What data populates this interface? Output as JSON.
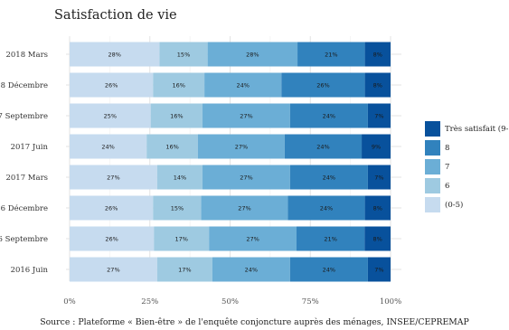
{
  "title": "Satisfaction de vie",
  "caption": "Source : Plateforme « Bien-être » de l'enquête conjoncture auprès des ménages, INSEE/CEPREMAP",
  "chart_data": {
    "type": "bar",
    "orientation": "horizontal",
    "stacked": true,
    "title": "Satisfaction de vie",
    "xlabel": "",
    "ylabel": "",
    "xlim": [
      0,
      100
    ],
    "x_ticks": [
      "0%",
      "25%",
      "50%",
      "75%",
      "100%"
    ],
    "grid": true,
    "legend_position": "right",
    "categories": [
      "2018 Mars",
      "2018 Décembre",
      "2017 Septembre",
      "2017 Juin",
      "2017 Mars",
      "2016 Décembre",
      "2016 Septembre",
      "2016 Juin"
    ],
    "series": [
      {
        "name": "(0-5)",
        "color": "#c6dbef",
        "values": [
          28,
          26,
          25,
          24,
          27,
          26,
          26,
          27
        ]
      },
      {
        "name": "6",
        "color": "#9ecae1",
        "values": [
          15,
          16,
          16,
          16,
          14,
          15,
          17,
          17
        ]
      },
      {
        "name": "7",
        "color": "#6baed6",
        "values": [
          28,
          24,
          27,
          27,
          27,
          27,
          27,
          24
        ]
      },
      {
        "name": "8",
        "color": "#3182bd",
        "values": [
          21,
          26,
          24,
          24,
          24,
          24,
          21,
          24
        ]
      },
      {
        "name": "Très satisfait (9-10)",
        "color": "#08519c",
        "values": [
          8,
          8,
          7,
          9,
          7,
          8,
          8,
          7
        ]
      }
    ],
    "legend_order": [
      "Très satisfait (9-10)",
      "8",
      "7",
      "6",
      "(0-5)"
    ]
  }
}
